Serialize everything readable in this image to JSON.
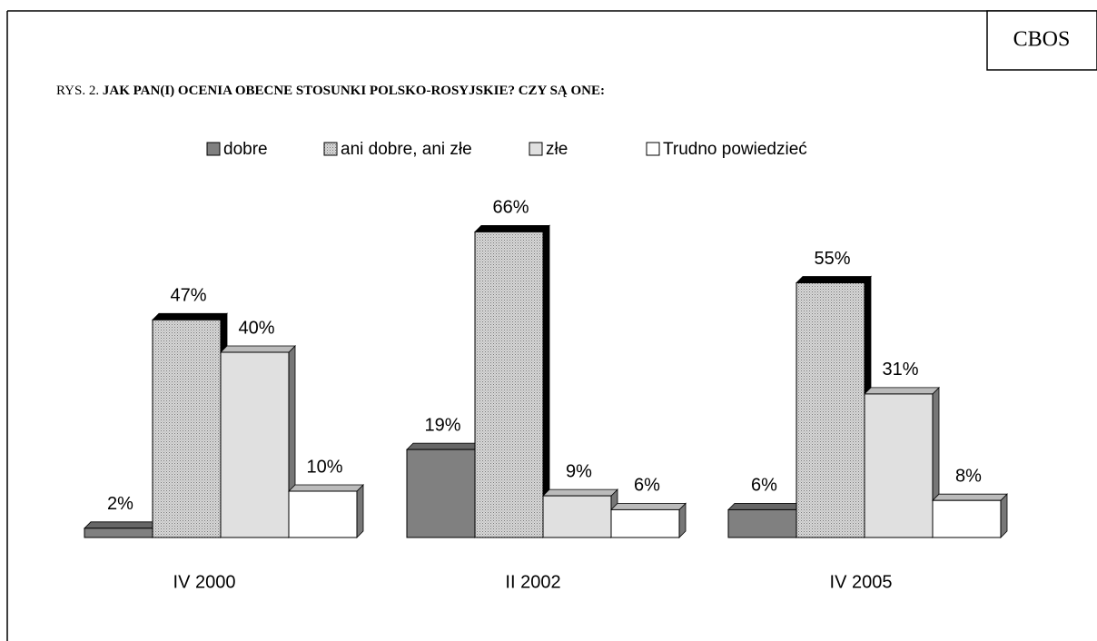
{
  "chart_data": {
    "type": "bar3d",
    "source": "CBOS",
    "figure_label": "RYS. 2.",
    "title": "JAK PAN(I) OCENIA OBECNE STOSUNKI POLSKO-ROSYJSKIE? CZY SĄ ONE:",
    "categories": [
      "IV 2000",
      "II 2002",
      "IV 2005"
    ],
    "series": [
      {
        "name": "dobre",
        "color": "#808080",
        "values": [
          2,
          19,
          6
        ],
        "value_labels": [
          "2%",
          "19%",
          "6%"
        ]
      },
      {
        "name": "ani dobre, ani złe",
        "color": "#c8c8c8",
        "pattern": "dotted",
        "values": [
          47,
          66,
          55
        ],
        "value_labels": [
          "47%",
          "66%",
          "55%"
        ]
      },
      {
        "name": "złe",
        "color": "#e0e0e0",
        "values": [
          40,
          9,
          31
        ],
        "value_labels": [
          "40%",
          "9%",
          "31%"
        ]
      },
      {
        "name": "Trudno powiedzieć",
        "color": "#ffffff",
        "values": [
          10,
          6,
          8
        ],
        "value_labels": [
          "10%",
          "6%",
          "8%"
        ]
      }
    ],
    "ylim": [
      0,
      70
    ],
    "legend": "top"
  }
}
